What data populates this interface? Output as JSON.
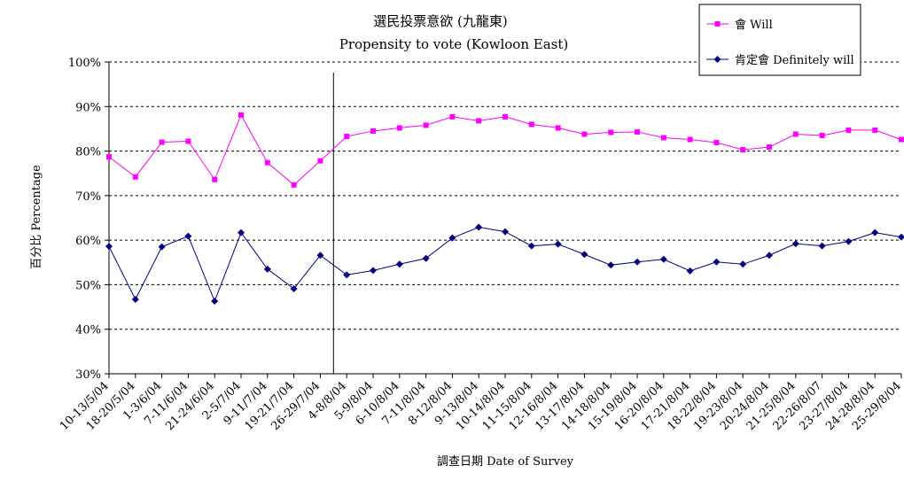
{
  "chart_data": {
    "type": "line",
    "title": "選民投票意欲 (九龍東)",
    "subtitle": "Propensity to vote (Kowloon East)",
    "xlabel": "調查日期 Date of Survey",
    "ylabel": "百分比 Percentage",
    "ylim": [
      30,
      100
    ],
    "yticks": [
      "30%",
      "40%",
      "50%",
      "60%",
      "70%",
      "80%",
      "90%",
      "100%"
    ],
    "grid": true,
    "legend_position": "top-right",
    "divider_after_category": "26-29/7/04",
    "categories": [
      "10-13/5/04",
      "18-20/5/04",
      "1-3/6/04",
      "7-11/6/04",
      "21-24/6/04",
      "2-5/7/04",
      "9-11/7/04",
      "19-21/7/04",
      "26-29/7/04",
      "4-8/8/04",
      "5-9/8/04",
      "6-10/8/04",
      "7-11/8/04",
      "8-12/8/04",
      "9-13/8/04",
      "10-14/8/04",
      "11-15/8/04",
      "12-16/8/04",
      "13-17/8/04",
      "14-18/8/04",
      "15-19/8/04",
      "16-20/8/04",
      "17-21/8/04",
      "18-22/8/04",
      "19-23/8/04",
      "20-24/8/04",
      "21-25/8/04",
      "22-26/8/07",
      "23-27/8/04",
      "24-28/8/04",
      "25-29/8/04"
    ],
    "series": [
      {
        "name": "會 Will",
        "color": "#ff00ff",
        "marker": "square",
        "values": [
          78.7,
          74.2,
          82.0,
          82.2,
          73.6,
          88.1,
          77.4,
          72.4,
          77.8,
          83.3,
          84.5,
          85.2,
          85.8,
          87.7,
          86.8,
          87.7,
          86.0,
          85.2,
          83.8,
          84.2,
          84.3,
          83.0,
          82.6,
          81.9,
          80.3,
          80.9,
          83.8,
          83.5,
          84.7,
          84.7,
          82.6
        ]
      },
      {
        "name": "肯定會 Definitely will",
        "color": "#000080",
        "marker": "diamond",
        "values": [
          58.6,
          46.7,
          58.5,
          60.9,
          46.3,
          61.7,
          53.5,
          49.1,
          56.6,
          52.2,
          53.2,
          54.6,
          55.9,
          60.5,
          62.9,
          61.9,
          58.7,
          59.1,
          56.8,
          54.4,
          55.1,
          55.7,
          53.1,
          55.1,
          54.6,
          56.6,
          59.2,
          58.7,
          59.7,
          61.7,
          60.7
        ]
      }
    ]
  }
}
